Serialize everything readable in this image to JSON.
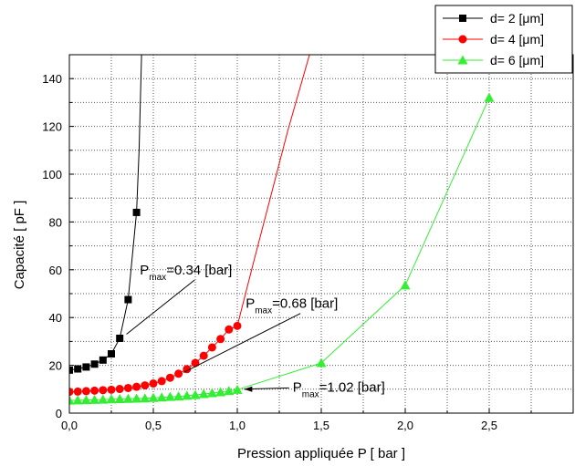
{
  "chart_data": {
    "type": "line",
    "xlabel": "Pression appliquée P [ bar ]",
    "ylabel": "Capacité [ pF ]",
    "xlim": [
      0,
      3.0
    ],
    "ylim": [
      0,
      150
    ],
    "xticks": [
      {
        "v": 0,
        "label": "0,0"
      },
      {
        "v": 0.5,
        "label": "0,5"
      },
      {
        "v": 1.0,
        "label": "1,0"
      },
      {
        "v": 1.5,
        "label": "1,5"
      },
      {
        "v": 2.0,
        "label": "2,0"
      },
      {
        "v": 2.5,
        "label": "2,5"
      }
    ],
    "yticks": [
      0,
      20,
      40,
      60,
      80,
      100,
      120,
      140
    ],
    "grid": "dotted",
    "legend_position": "top-right",
    "series": [
      {
        "name": "d= 2 [μm]",
        "color": "#000000",
        "marker": "square",
        "points": [
          [
            0.0,
            18.0
          ],
          [
            0.05,
            18.5
          ],
          [
            0.1,
            19.3
          ],
          [
            0.15,
            20.5
          ],
          [
            0.2,
            22.2
          ],
          [
            0.25,
            24.8
          ],
          [
            0.3,
            31.3
          ],
          [
            0.35,
            47.5
          ],
          [
            0.4,
            84.0
          ]
        ],
        "curve_extension": [
          [
            0.4,
            84.0
          ],
          [
            0.415,
            110.0
          ],
          [
            0.43,
            150.0
          ]
        ]
      },
      {
        "name": "d= 4 [μm]",
        "color": "#ff0000",
        "marker": "circle",
        "points": [
          [
            0.0,
            8.9
          ],
          [
            0.05,
            9.0
          ],
          [
            0.1,
            9.2
          ],
          [
            0.15,
            9.4
          ],
          [
            0.2,
            9.6
          ],
          [
            0.25,
            9.8
          ],
          [
            0.3,
            10.1
          ],
          [
            0.35,
            10.5
          ],
          [
            0.4,
            11.0
          ],
          [
            0.45,
            11.6
          ],
          [
            0.5,
            12.4
          ],
          [
            0.55,
            13.4
          ],
          [
            0.6,
            14.8
          ],
          [
            0.65,
            16.5
          ],
          [
            0.7,
            18.4
          ],
          [
            0.75,
            21.0
          ],
          [
            0.8,
            24.0
          ],
          [
            0.85,
            27.5
          ],
          [
            0.9,
            31.0
          ],
          [
            0.95,
            35.0
          ],
          [
            1.0,
            36.5
          ]
        ],
        "curve_extension": [
          [
            1.0,
            36.5
          ],
          [
            1.1,
            64.0
          ],
          [
            1.2,
            91.0
          ],
          [
            1.3,
            118.0
          ],
          [
            1.43,
            150.0
          ]
        ]
      },
      {
        "name": "d= 6 [μm]",
        "color": "#33ee33",
        "marker": "triangle",
        "points": [
          [
            0.0,
            5.3
          ],
          [
            0.05,
            5.4
          ],
          [
            0.1,
            5.5
          ],
          [
            0.15,
            5.6
          ],
          [
            0.2,
            5.7
          ],
          [
            0.25,
            5.8
          ],
          [
            0.3,
            5.9
          ],
          [
            0.35,
            6.0
          ],
          [
            0.4,
            6.1
          ],
          [
            0.45,
            6.2
          ],
          [
            0.5,
            6.4
          ],
          [
            0.55,
            6.6
          ],
          [
            0.6,
            6.8
          ],
          [
            0.65,
            7.0
          ],
          [
            0.7,
            7.3
          ],
          [
            0.75,
            7.6
          ],
          [
            0.8,
            8.0
          ],
          [
            0.85,
            8.4
          ],
          [
            0.9,
            8.8
          ],
          [
            0.95,
            9.3
          ],
          [
            1.0,
            9.8
          ],
          [
            1.5,
            21.0
          ],
          [
            2.0,
            53.5
          ],
          [
            2.5,
            132.0
          ]
        ]
      }
    ],
    "annotations": [
      {
        "main": "P",
        "sub": "max",
        "rest": "=0.34 [bar]",
        "text_at": [
          0.42,
          58
        ],
        "arrow_to": [
          0.34,
          33
        ]
      },
      {
        "main": "P",
        "sub": "max",
        "rest": "=0.68 [bar]",
        "text_at": [
          1.05,
          44
        ],
        "arrow_to": [
          0.68,
          17
        ]
      },
      {
        "main": "P",
        "sub": "max",
        "rest": "=1.02 [bar]",
        "text_at": [
          1.33,
          9
        ],
        "arrow_to": [
          1.04,
          10
        ]
      }
    ]
  }
}
